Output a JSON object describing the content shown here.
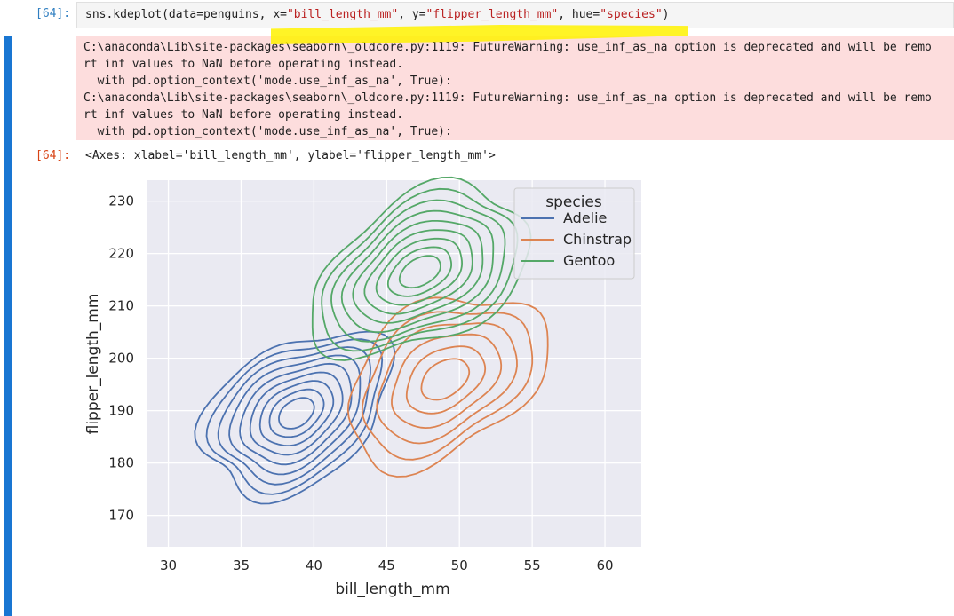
{
  "cell": {
    "in_prompt": "[64]:",
    "out_prompt": "[64]:",
    "code": {
      "fn": "sns.kdeplot(data=penguins, x=",
      "x_str": "\"bill_length_mm\"",
      "sep1": ", y=",
      "y_str": "\"flipper_length_mm\"",
      "sep2": ", hue=",
      "hue_str": "\"species\"",
      "end": ")"
    },
    "stderr_lines": [
      "C:\\anaconda\\Lib\\site-packages\\seaborn\\_oldcore.py:1119: FutureWarning: use_inf_as_na option is deprecated and will be remo",
      "rt inf values to NaN before operating instead.",
      "  with pd.option_context('mode.use_inf_as_na', True):",
      "C:\\anaconda\\Lib\\site-packages\\seaborn\\_oldcore.py:1119: FutureWarning: use_inf_as_na option is deprecated and will be remo",
      "rt inf values to NaN before operating instead.",
      "  with pd.option_context('mode.use_inf_as_na', True):"
    ],
    "output_text": "<Axes: xlabel='bill_length_mm', ylabel='flipper_length_mm'>"
  },
  "colors": {
    "accent": "#1976d2",
    "highlight": "#fff200",
    "stderr_bg": "#fddddd"
  },
  "chart_data": {
    "type": "kde-contour",
    "xlabel": "bill_length_mm",
    "ylabel": "flipper_length_mm",
    "xlim": [
      28.5,
      62.5
    ],
    "ylim": [
      164,
      234
    ],
    "xticks": [
      30,
      35,
      40,
      45,
      50,
      55,
      60
    ],
    "yticks": [
      170,
      180,
      190,
      200,
      210,
      220,
      230
    ],
    "grid": true,
    "legend": {
      "title": "species",
      "placement": "top-right"
    },
    "series": [
      {
        "name": "Adelie",
        "color": "#4c72b0",
        "center": [
          38.8,
          189.5
        ],
        "spread": [
          3.1,
          7.0
        ],
        "levels": 9
      },
      {
        "name": "Chinstrap",
        "color": "#dd8452",
        "center": [
          49.0,
          196.0
        ],
        "spread": [
          3.3,
          7.3
        ],
        "levels": 6
      },
      {
        "name": "Gentoo",
        "color": "#55a868",
        "center": [
          47.3,
          216.5
        ],
        "spread": [
          3.6,
          7.1
        ],
        "levels": 9
      }
    ]
  }
}
